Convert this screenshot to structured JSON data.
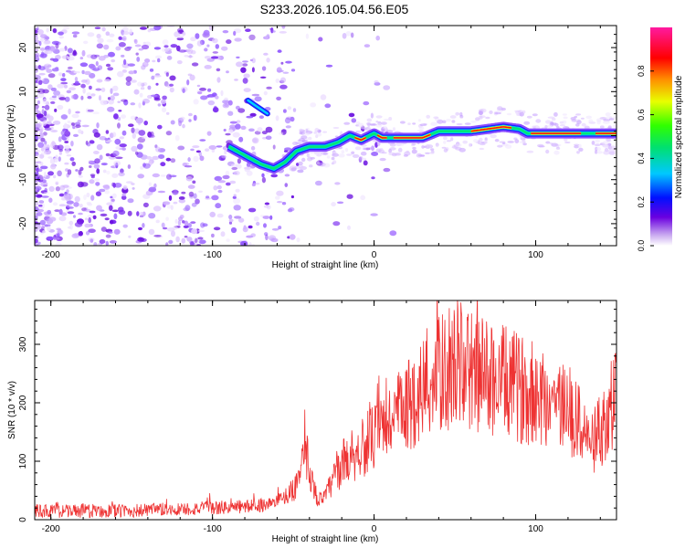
{
  "title": "S233.2026.105.04.56.E05",
  "chart_data": [
    {
      "type": "heatmap",
      "name": "spectrogram",
      "xlabel": "Height of straight line (km)",
      "ylabel": "Frequency (Hz)",
      "xlim": [
        -210,
        150
      ],
      "ylim": [
        -25,
        25
      ],
      "xticks": [
        -200,
        -100,
        0,
        100
      ],
      "yticks": [
        -20,
        -10,
        0,
        10,
        20
      ],
      "colorbar": {
        "label": "Normalized spectral amplitude",
        "range": [
          0,
          1
        ],
        "ticks": [
          "0.0",
          "0.2",
          "0.4",
          "0.6",
          "0.8"
        ]
      },
      "ridge": {
        "x": [
          -90,
          -80,
          -70,
          -62,
          -55,
          -48,
          -40,
          -30,
          -22,
          -15,
          -8,
          0,
          5,
          10,
          20,
          30,
          40,
          50,
          60,
          70,
          80,
          90,
          95,
          100,
          110,
          120,
          130,
          140,
          150
        ],
        "y": [
          -2.5,
          -4.5,
          -6.5,
          -7.5,
          -6,
          -3.5,
          -2.5,
          -2.5,
          -1.5,
          0,
          -1,
          0.5,
          -0.5,
          -0.5,
          -0.5,
          -0.5,
          1,
          1,
          1,
          1.5,
          2,
          1.5,
          0.5,
          0.5,
          0.5,
          0.5,
          0.5,
          0.5,
          0.5
        ]
      },
      "branch": {
        "x": [
          -78,
          -74,
          -70,
          -66
        ],
        "y": [
          8,
          7,
          6,
          5
        ]
      }
    },
    {
      "type": "line",
      "name": "snr",
      "xlabel": "Height of straight line (km)",
      "ylabel": "SNR (10 * v/v)",
      "xlim": [
        -210,
        150
      ],
      "ylim": [
        0,
        375
      ],
      "xticks": [
        -200,
        -100,
        0,
        100
      ],
      "yticks": [
        0,
        100,
        200,
        300
      ],
      "color": "#ee3333",
      "envelope": {
        "x": [
          -210,
          -150,
          -100,
          -80,
          -70,
          -60,
          -50,
          -45,
          -42,
          -40,
          -38,
          -35,
          -30,
          -25,
          -20,
          -15,
          -10,
          -5,
          0,
          10,
          20,
          30,
          40,
          50,
          60,
          70,
          80,
          90,
          100,
          110,
          120,
          130,
          135,
          140,
          150
        ],
        "y": [
          15,
          15,
          20,
          22,
          25,
          30,
          50,
          85,
          110,
          95,
          60,
          35,
          40,
          70,
          95,
          110,
          115,
          130,
          140,
          170,
          190,
          225,
          245,
          270,
          255,
          245,
          235,
          225,
          215,
          205,
          190,
          150,
          130,
          150,
          220
        ]
      }
    }
  ]
}
